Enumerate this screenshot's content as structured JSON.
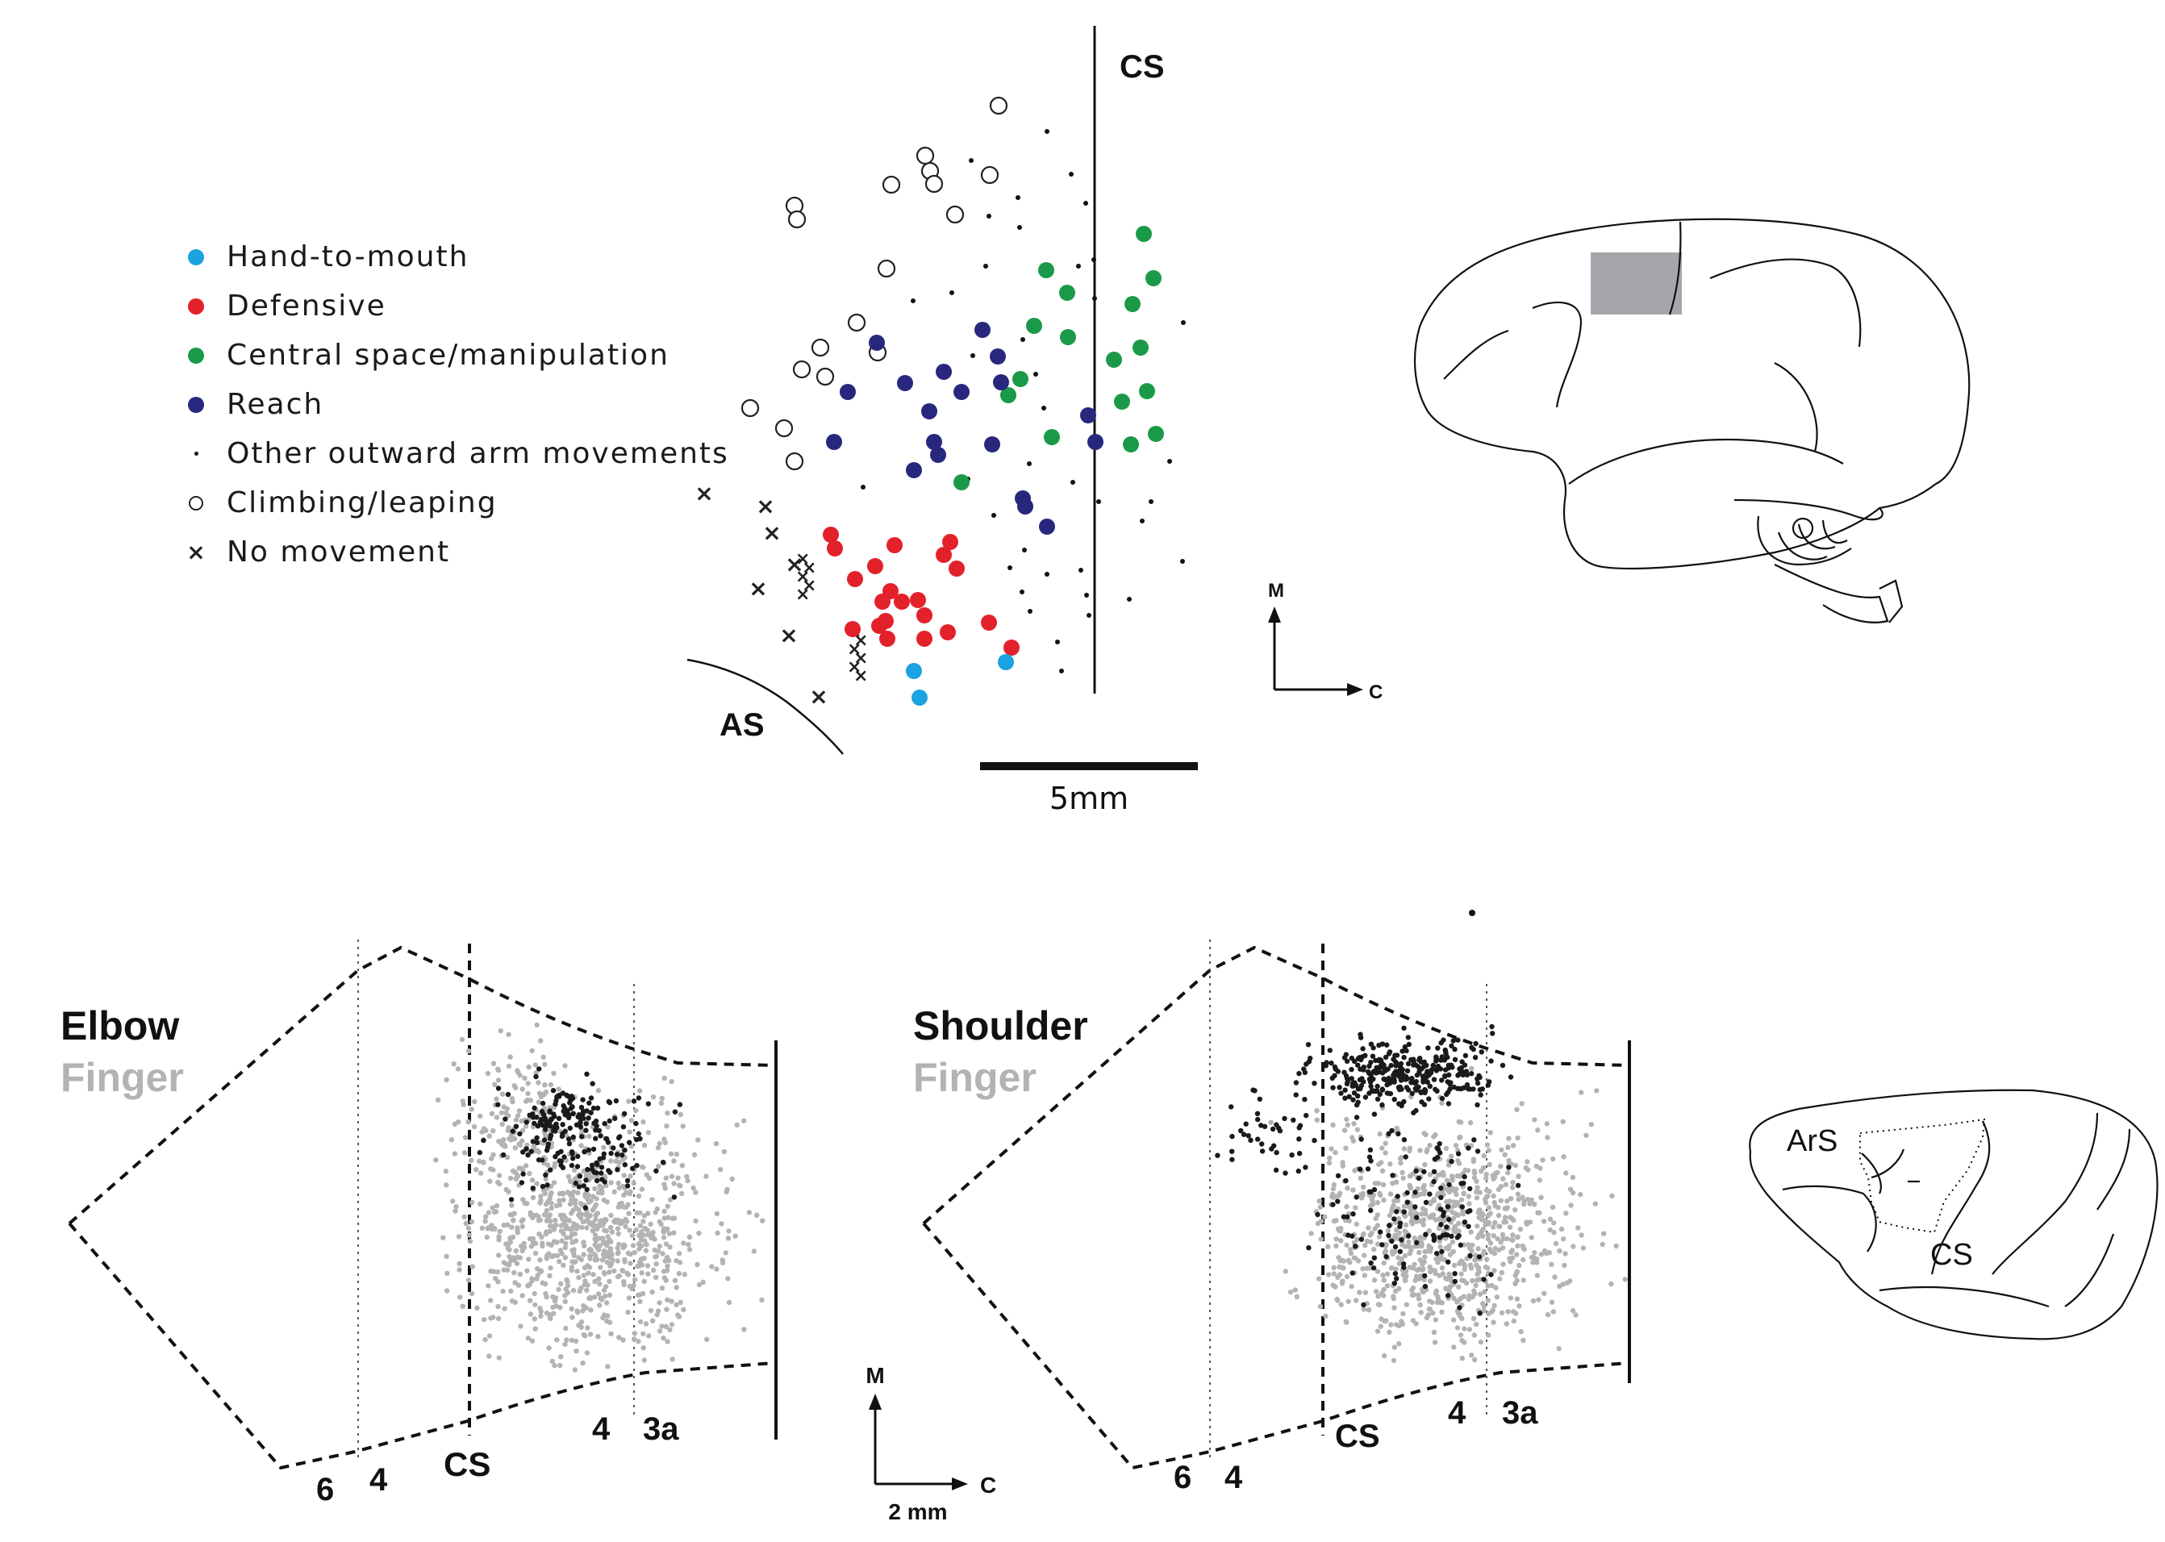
{
  "legend": [
    {
      "key": "hand-to-mouth",
      "label": "Hand-to-mouth",
      "symbol": "dot",
      "color": "#1aa3e0"
    },
    {
      "key": "defensive",
      "label": "Defensive",
      "symbol": "dot",
      "color": "#e3212b"
    },
    {
      "key": "central-space",
      "label": "Central space/manipulation",
      "symbol": "dot",
      "color": "#1a9a48"
    },
    {
      "key": "reach",
      "label": "Reach",
      "symbol": "dot",
      "color": "#27287d"
    },
    {
      "key": "other-outward",
      "label": "Other outward arm movements",
      "symbol": "tiny",
      "color": "#111111"
    },
    {
      "key": "climbing",
      "label": "Climbing/leaping",
      "symbol": "ring",
      "color": "#222222"
    },
    {
      "key": "no-movement",
      "label": "No movement",
      "symbol": "x",
      "color": "#222222"
    }
  ],
  "top_map": {
    "cs_label": "CS",
    "as_label": "AS",
    "scale_label": "5mm",
    "axis_m": "M",
    "axis_c": "C"
  },
  "bottom_left": {
    "title_dark": "Elbow",
    "title_light": "Finger",
    "area_labels": [
      "6",
      "4",
      "CS",
      "4",
      "3a"
    ]
  },
  "bottom_right": {
    "title_dark": "Shoulder",
    "title_light": "Finger",
    "area_labels": [
      "6",
      "4",
      "CS",
      "4",
      "3a"
    ]
  },
  "bottom_axes": {
    "axis_m": "M",
    "axis_c": "C",
    "scale_label": "2 mm"
  },
  "brain_small": {
    "ars_label": "ArS",
    "cs_label": "CS"
  },
  "colors": {
    "finger": "#b3b3b3",
    "dark": "#1a1a1a",
    "roi": "#a4a6a9"
  }
}
